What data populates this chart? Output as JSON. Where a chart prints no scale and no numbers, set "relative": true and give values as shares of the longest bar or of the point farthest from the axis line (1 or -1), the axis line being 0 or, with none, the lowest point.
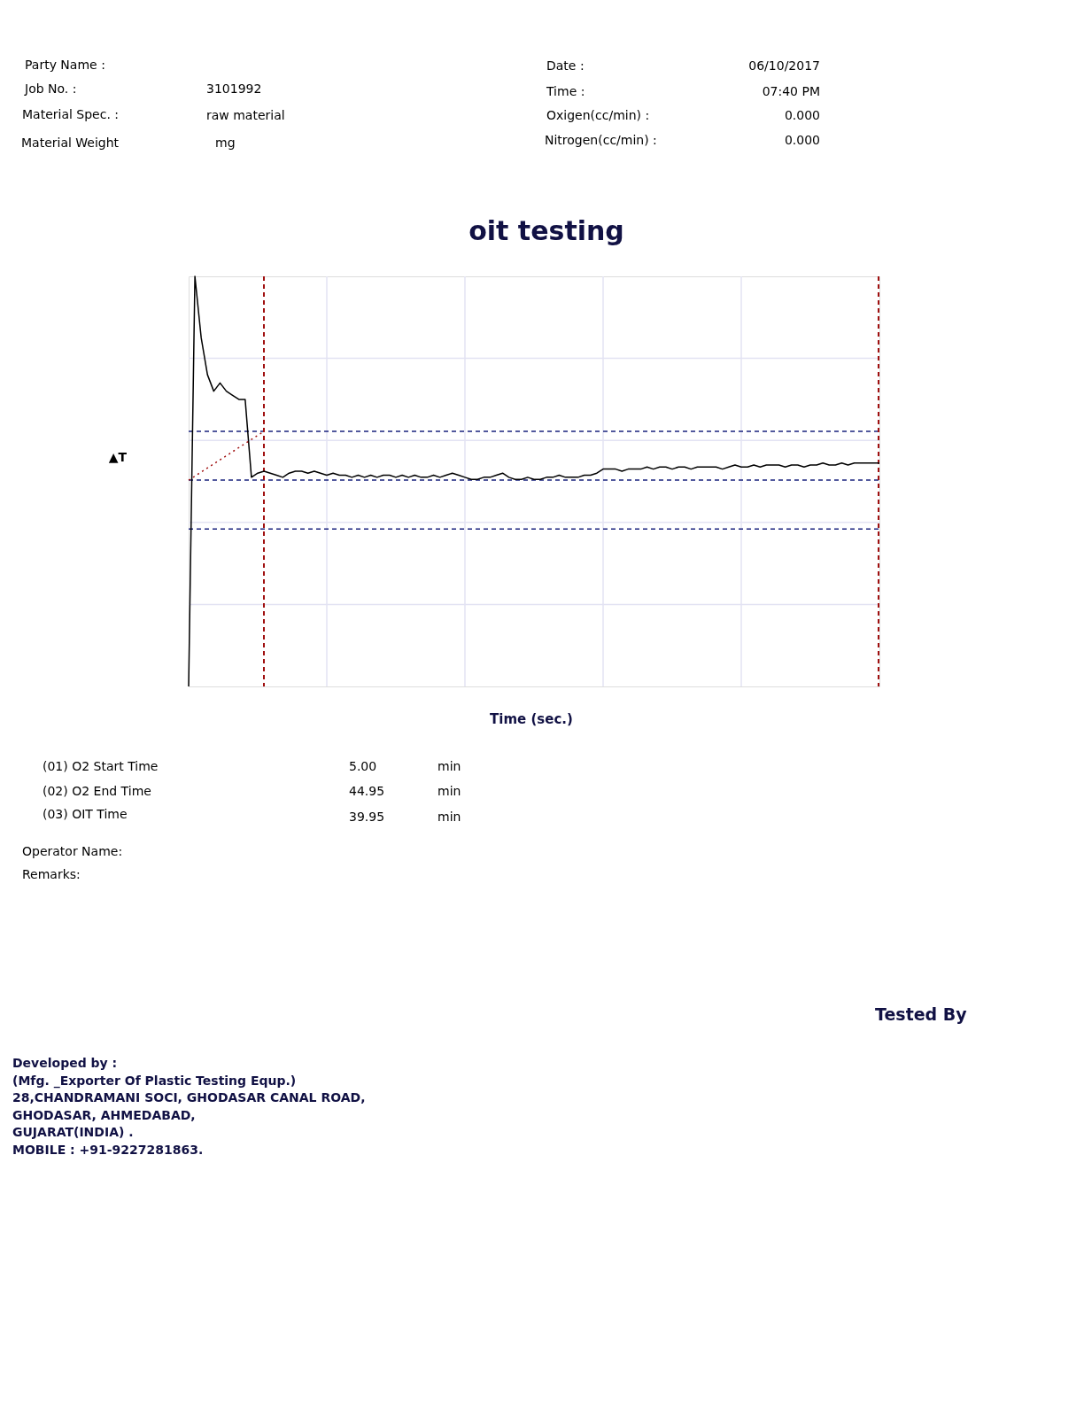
{
  "chart_data": {
    "type": "line",
    "title": "oit testing",
    "xlabel": "Time (sec.)",
    "ylabel": "▲T",
    "relative": true,
    "grid": true,
    "categories": [
      null,
      null,
      null,
      null,
      null,
      null,
      null,
      null,
      null,
      null,
      null,
      null,
      null,
      null,
      null,
      null,
      null,
      null,
      null,
      null,
      null,
      null,
      null,
      null,
      null,
      null,
      null,
      null,
      null,
      null,
      null,
      null,
      null,
      null,
      null,
      null,
      null,
      null,
      null,
      null,
      null,
      null,
      null,
      null,
      null,
      null,
      null,
      null,
      null,
      null,
      null,
      null,
      null,
      null,
      null,
      null,
      null,
      null,
      null,
      null,
      null,
      null,
      null,
      null,
      null,
      null,
      null,
      null,
      null,
      null,
      null,
      null,
      null,
      null,
      null,
      null,
      null,
      null,
      null,
      null,
      null,
      null,
      null,
      null,
      null,
      null,
      null,
      null,
      null,
      null,
      null,
      null,
      null,
      null,
      null,
      null,
      null,
      null,
      null,
      null,
      null,
      null,
      null,
      null,
      null,
      null,
      null,
      null,
      null,
      null,
      null
    ],
    "series": [
      {
        "color": "#000000",
        "line_style": "solid",
        "values": [
          0,
          1.0,
          0.85,
          0.76,
          0.72,
          0.74,
          0.72,
          0.71,
          0.7,
          0.7,
          0.51,
          0.52,
          0.525,
          0.52,
          0.515,
          0.51,
          0.52,
          0.525,
          0.525,
          0.52,
          0.525,
          0.52,
          0.515,
          0.52,
          0.515,
          0.515,
          0.51,
          0.515,
          0.51,
          0.515,
          0.51,
          0.515,
          0.515,
          0.51,
          0.515,
          0.51,
          0.515,
          0.51,
          0.51,
          0.515,
          0.51,
          0.515,
          0.52,
          0.515,
          0.51,
          0.505,
          0.505,
          0.51,
          0.51,
          0.515,
          0.52,
          0.51,
          0.505,
          0.505,
          0.51,
          0.505,
          0.505,
          0.51,
          0.51,
          0.515,
          0.51,
          0.51,
          0.51,
          0.515,
          0.515,
          0.52,
          0.53,
          0.53,
          0.53,
          0.525,
          0.53,
          0.53,
          0.53,
          0.535,
          0.53,
          0.535,
          0.535,
          0.53,
          0.535,
          0.535,
          0.53,
          0.535,
          0.535,
          0.535,
          0.535,
          0.53,
          0.535,
          0.54,
          0.535,
          0.535,
          0.54,
          0.535,
          0.54,
          0.54,
          0.54,
          0.535,
          0.54,
          0.54,
          0.535,
          0.54,
          0.54,
          0.545,
          0.54,
          0.54,
          0.545,
          0.54,
          0.545,
          0.545,
          0.545,
          0.545,
          0.545
        ]
      },
      {
        "color": "#a01010",
        "line_style": "dotted",
        "values": [
          0.503,
          null,
          null,
          null,
          null,
          null,
          null,
          null,
          null,
          null,
          null,
          null,
          0.622,
          null,
          null,
          null,
          null,
          null,
          null,
          null,
          null,
          null,
          null,
          null,
          null,
          null,
          null,
          null,
          null,
          null,
          null,
          null,
          null,
          null,
          null,
          null,
          null,
          null,
          null,
          null,
          null,
          null,
          null,
          null,
          null,
          null,
          null,
          null,
          null,
          null,
          null,
          null,
          null,
          null,
          null,
          null,
          null,
          null,
          null,
          null,
          null,
          null,
          null,
          null,
          null,
          null,
          null,
          null,
          null,
          null,
          null,
          null,
          null,
          null,
          null,
          null,
          null,
          null,
          null,
          null,
          null,
          null,
          null,
          null,
          null,
          null,
          null,
          null,
          null,
          null,
          null,
          null,
          null,
          null,
          null,
          null,
          null,
          null,
          null,
          null,
          null,
          null,
          null,
          null,
          null,
          null,
          null,
          null,
          null,
          null,
          null
        ]
      }
    ],
    "ref_lines": [
      {
        "axis": "y",
        "value": 0.622,
        "color": "#1a237e",
        "line_style": "dashed"
      },
      {
        "axis": "y",
        "value": 0.503,
        "color": "#1a237e",
        "line_style": "dashed"
      },
      {
        "axis": "y",
        "value": 0.384,
        "color": "#1a237e",
        "line_style": "dashed"
      }
    ],
    "annotations": [
      "Party Name :",
      "Job No. :",
      "3101992",
      "Material Spec. :",
      "raw material",
      "Material Weight",
      "mg",
      "Date :",
      "06/10/2017",
      "Time :",
      "07:40 PM",
      "Oxigen(cc/min) :",
      "0.000",
      "Nitrogen(cc/min) :",
      "0.000",
      "(01) O2 Start Time",
      "5.00",
      "min",
      "(02) O2 End Time",
      "44.95",
      "min",
      "(03) OIT Time",
      "39.95",
      "min",
      "Operator Name:",
      "Remarks:",
      "Tested By",
      "Developed by :",
      "(Mfg. _Exporter Of Plastic Testing Equp.)",
      "28,CHANDRAMANI SOCI, GHODASAR CANAL ROAD,",
      "GHODASAR, AHMEDABAD,",
      "GUJARAT(INDIA) .",
      "MOBILE : +91-9227281863."
    ]
  }
}
